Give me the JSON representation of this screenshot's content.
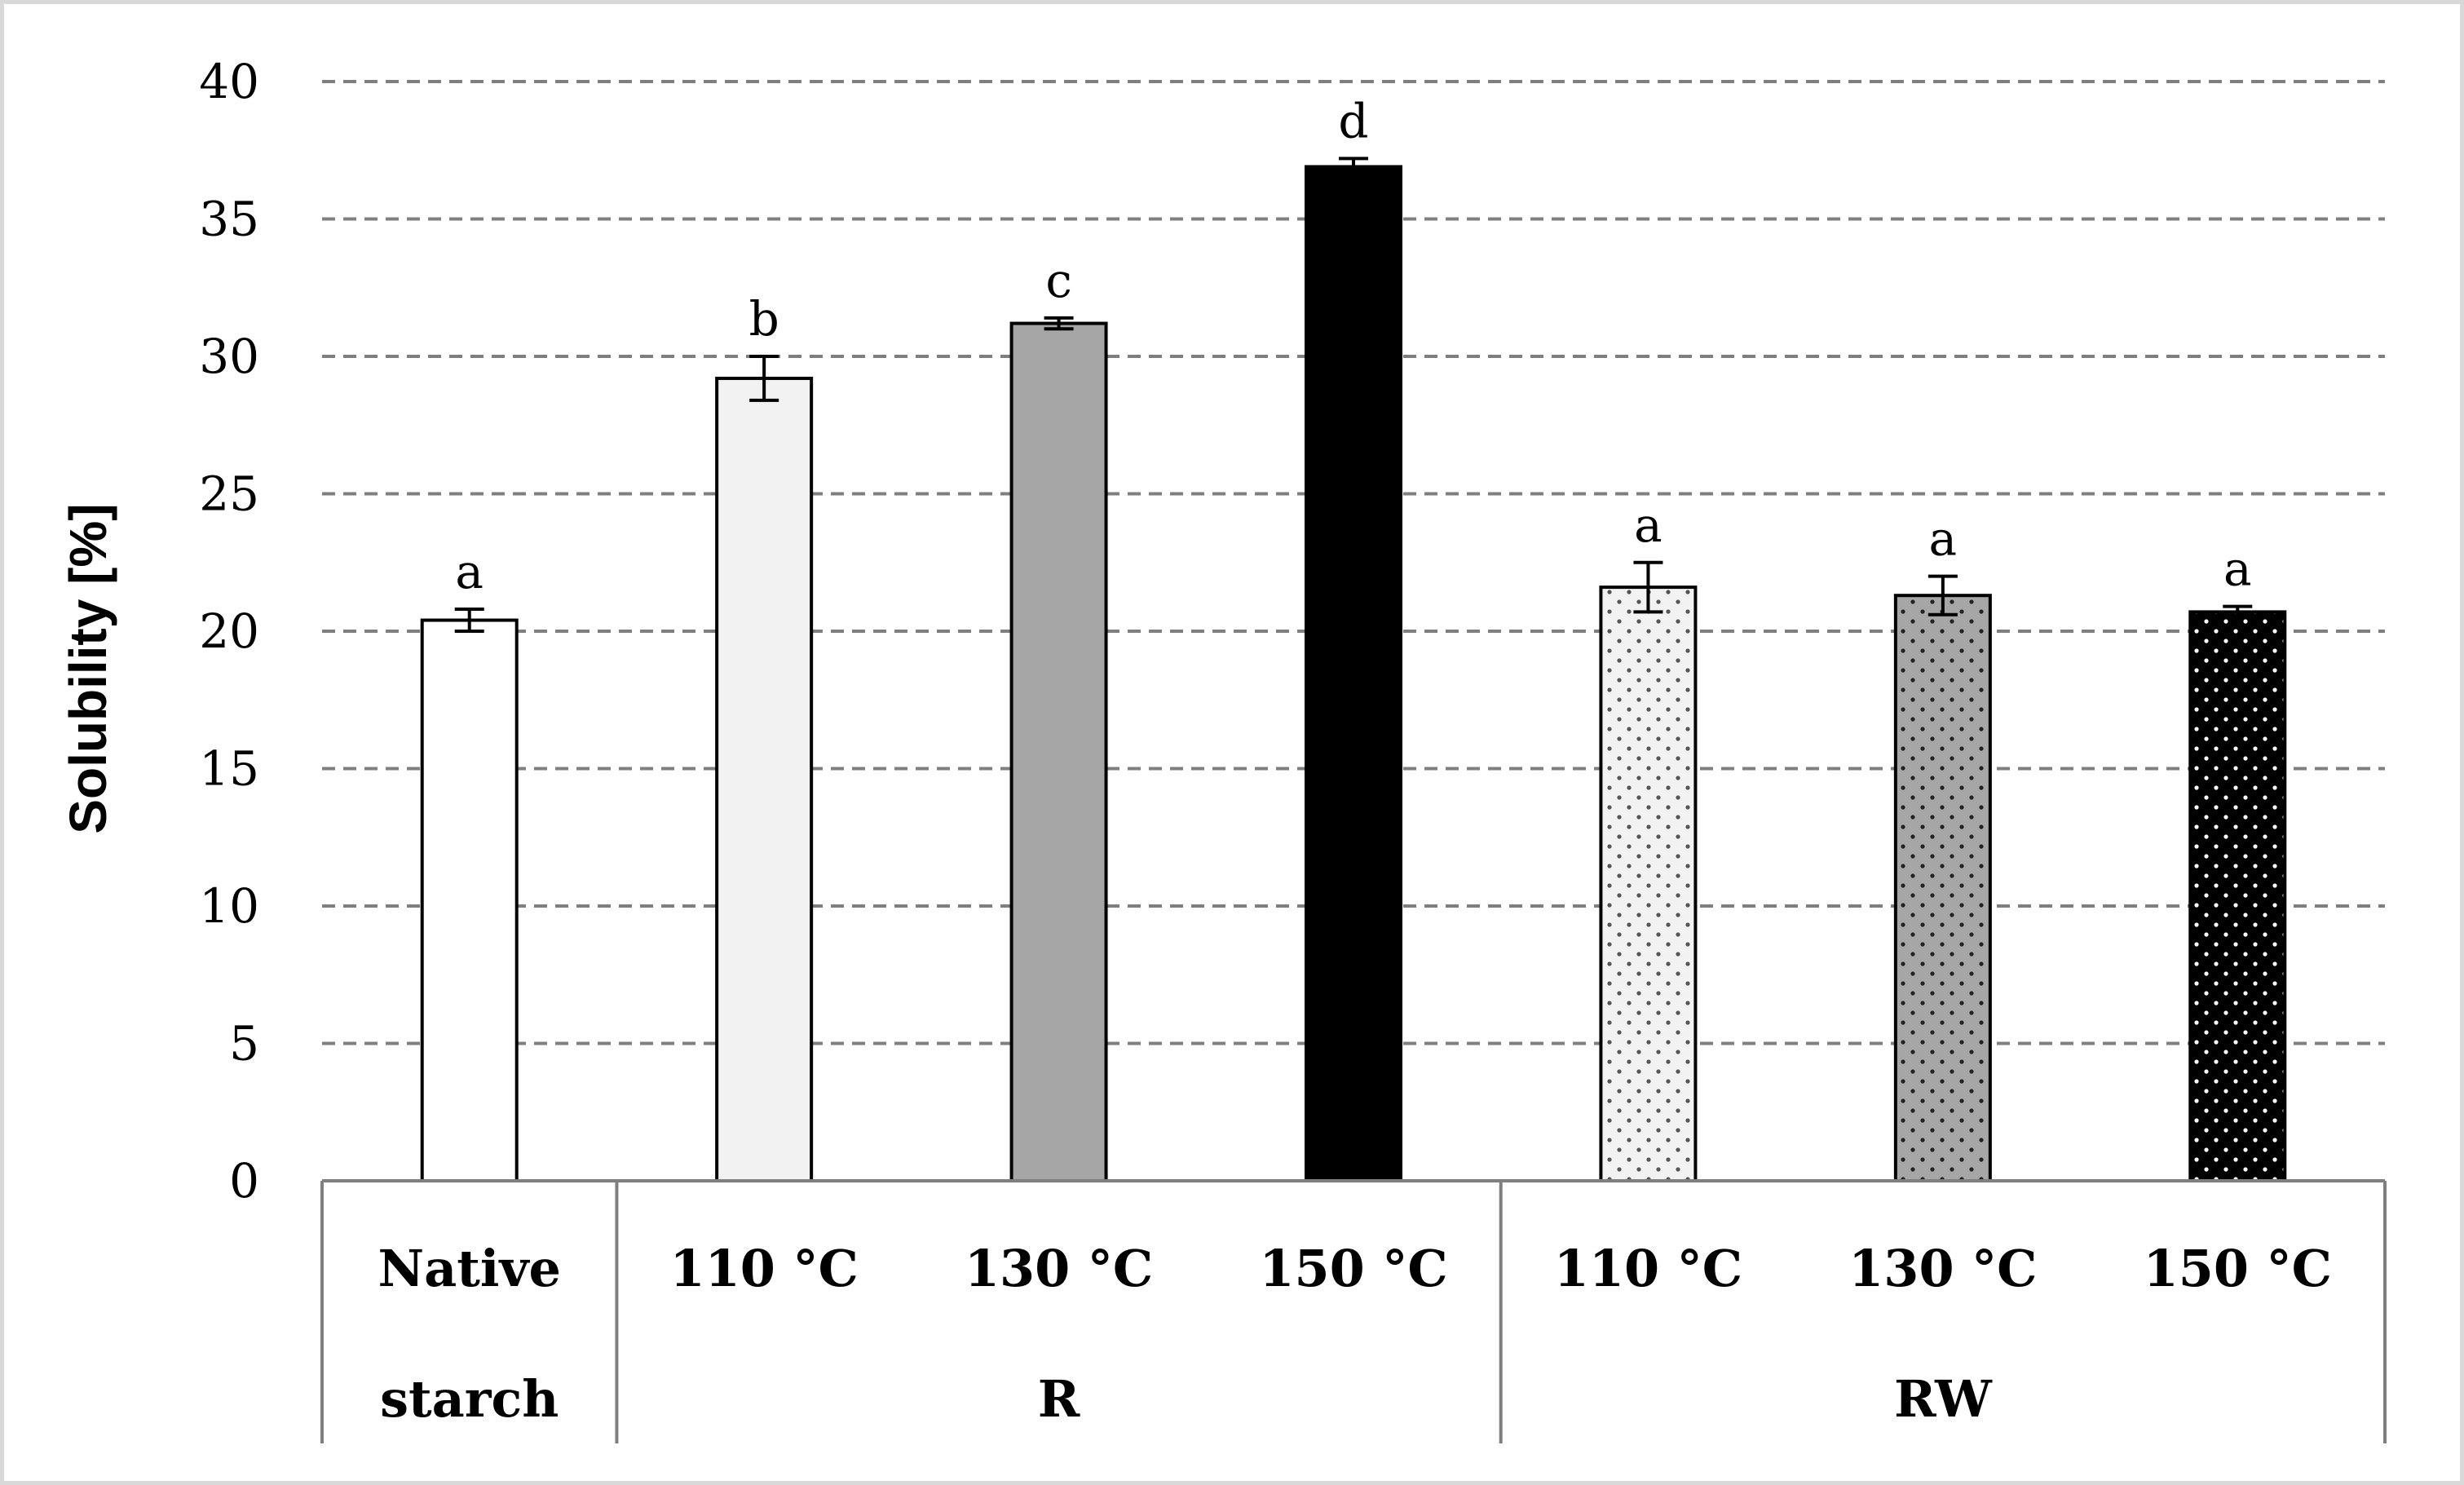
{
  "chart_data": {
    "type": "bar",
    "title": "",
    "xlabel": "",
    "ylabel": "Solubility [%]",
    "ylim": [
      0,
      40
    ],
    "yticks": [
      0,
      5,
      10,
      15,
      20,
      25,
      30,
      35,
      40
    ],
    "grid": "horizontal-dashed",
    "categories": [
      "Native starch",
      "110 °C",
      "130 °C",
      "150 °C",
      "110 °C",
      "130 °C",
      "150 °C"
    ],
    "groups": [
      {
        "label": "Native\nstarch",
        "line1": "Native",
        "line2": "starch",
        "members": [
          0
        ]
      },
      {
        "label": "R",
        "members": [
          1,
          2,
          3
        ]
      },
      {
        "label": "RW",
        "members": [
          4,
          5,
          6
        ]
      }
    ],
    "values": [
      20.4,
      29.2,
      31.2,
      36.9,
      21.6,
      21.3,
      20.7
    ],
    "errors": [
      0.4,
      0.8,
      0.2,
      0.3,
      0.9,
      0.7,
      0.2
    ],
    "significance": [
      "a",
      "b",
      "c",
      "d",
      "a",
      "a",
      "a"
    ],
    "fills": [
      "#ffffff",
      "#f2f2f2",
      "#a6a6a6",
      "#000000",
      "#f2f2f2",
      "#a6a6a6",
      "#000000"
    ],
    "dotted": [
      false,
      false,
      false,
      false,
      true,
      true,
      true
    ],
    "dot_colors": [
      "",
      "",
      "",
      "",
      "#555555",
      "#222222",
      "#ffffff"
    ]
  }
}
